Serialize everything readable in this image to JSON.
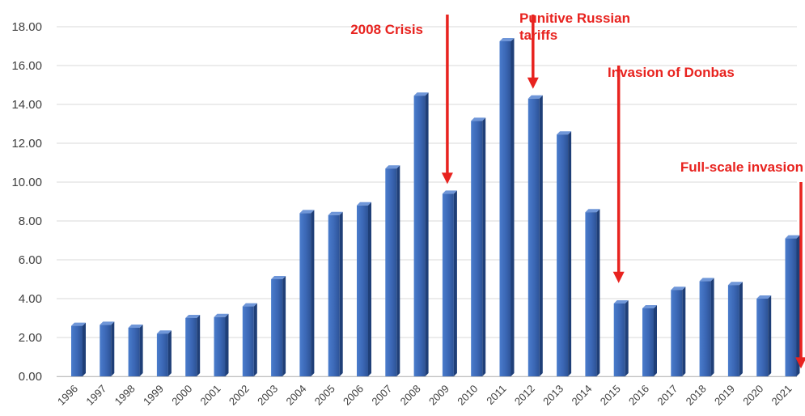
{
  "chart_data": {
    "type": "bar",
    "title": "",
    "xlabel": "",
    "ylabel": "",
    "ylim": [
      0,
      18
    ],
    "yticks": [
      "0.00",
      "2.00",
      "4.00",
      "6.00",
      "8.00",
      "10.00",
      "12.00",
      "14.00",
      "16.00",
      "18.00"
    ],
    "grid": true,
    "legend": "none",
    "bar_color": "#3b67b5",
    "categories": [
      "1996",
      "1997",
      "1998",
      "1999",
      "2000",
      "2001",
      "2002",
      "2003",
      "2004",
      "2005",
      "2006",
      "2007",
      "2008",
      "2009",
      "2010",
      "2011",
      "2012",
      "2013",
      "2014",
      "2015",
      "2016",
      "2017",
      "2018",
      "2019",
      "2020",
      "2021"
    ],
    "values": [
      2.6,
      2.65,
      2.5,
      2.2,
      3.0,
      3.05,
      3.6,
      5.0,
      8.4,
      8.3,
      8.8,
      10.7,
      14.45,
      9.4,
      13.15,
      17.25,
      14.3,
      12.45,
      8.45,
      3.75,
      3.5,
      4.45,
      4.9,
      4.7,
      4.0,
      7.1
    ],
    "annotation_color": "#e8231f",
    "annotations": [
      {
        "lines": [
          "2008 Crisis"
        ],
        "arrow_category": "2009",
        "arrow_from_value": 18.8,
        "arrow_to_value": 9.9
      },
      {
        "lines": [
          "Punitive Russian",
          "tariffs"
        ],
        "arrow_category": "2012",
        "arrow_from_value": 18.8,
        "arrow_to_value": 14.8
      },
      {
        "lines": [
          "Invasion of Donbas"
        ],
        "arrow_category": "2015",
        "arrow_from_value": 16.0,
        "arrow_to_value": 4.8
      },
      {
        "lines": [
          "Full-scale invasion"
        ],
        "arrow_category": "2022",
        "arrow_from_value": 10.0,
        "arrow_to_value": 0.4
      }
    ]
  }
}
